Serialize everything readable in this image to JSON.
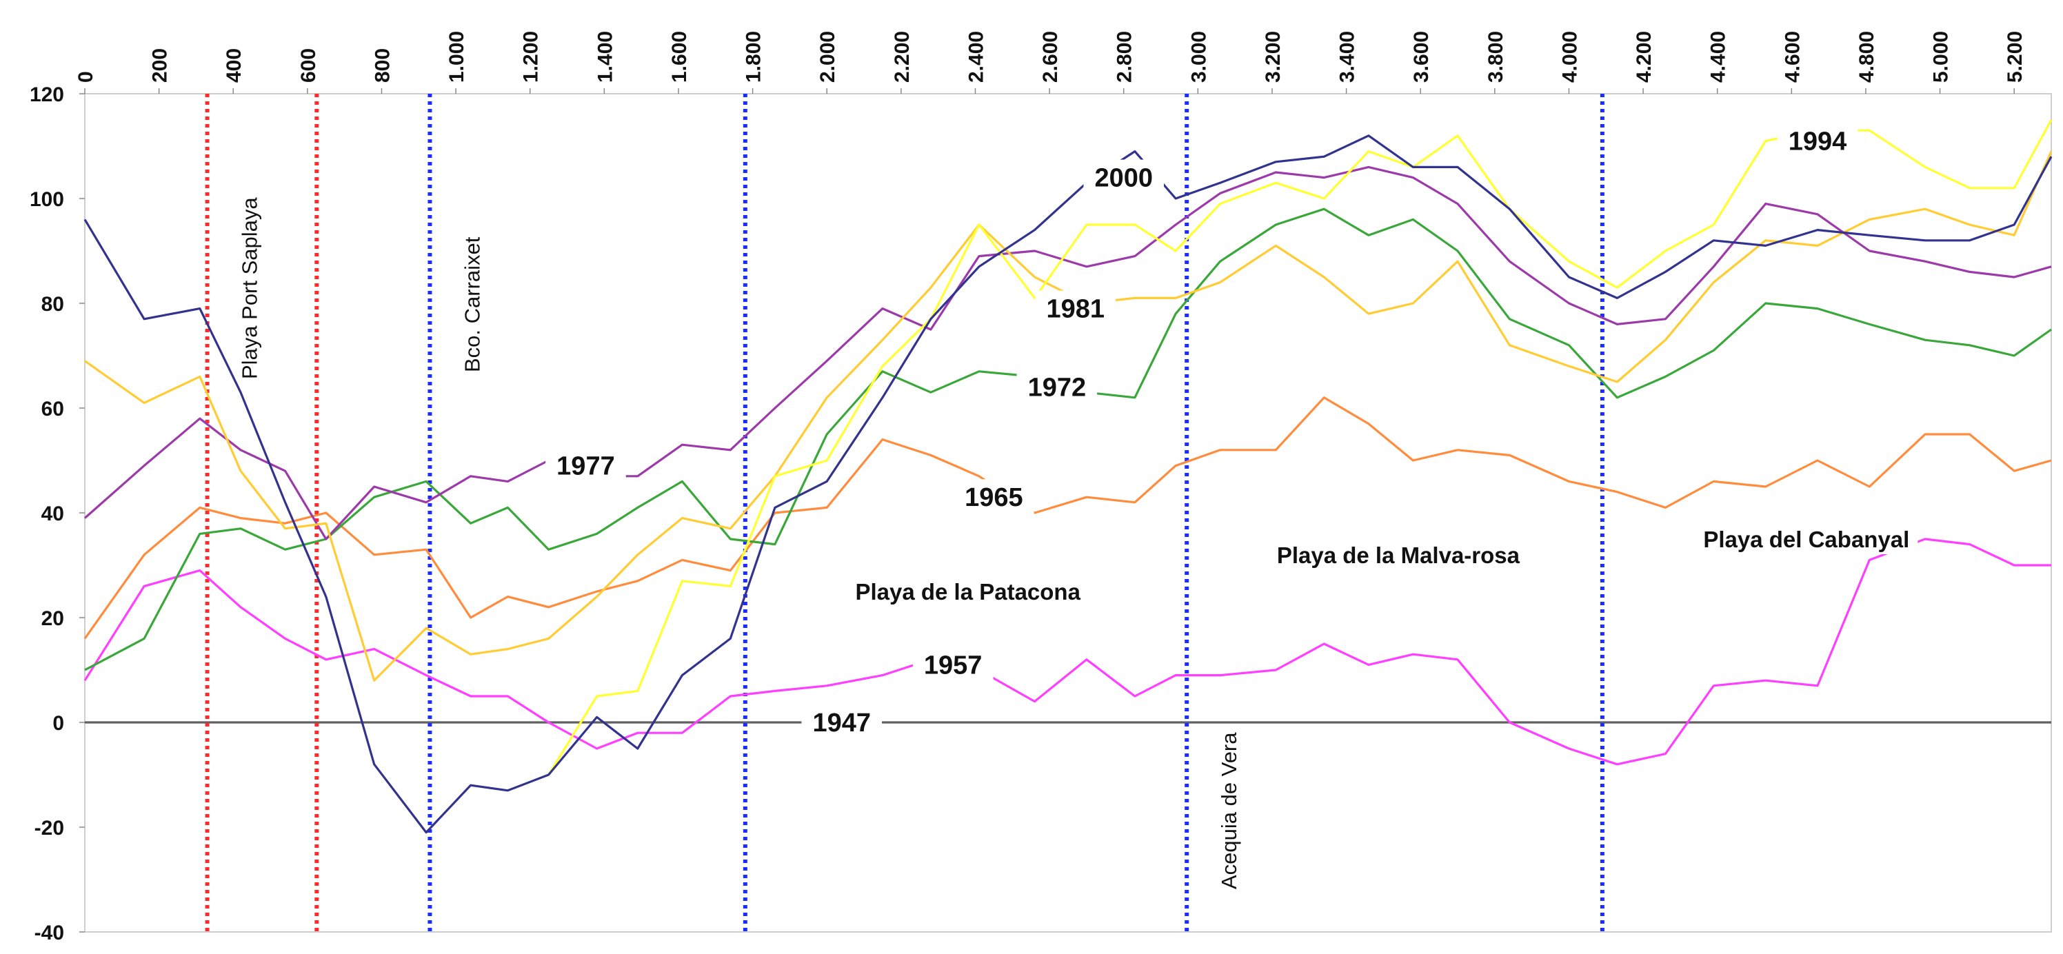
{
  "chart_data": {
    "type": "line",
    "xlabel": "",
    "ylabel": "",
    "xlim": [
      0,
      5300
    ],
    "ylim": [
      -40,
      120
    ],
    "x_ticks": [
      "0",
      "200",
      "400",
      "600",
      "800",
      "1.000",
      "1.200",
      "1.400",
      "1.600",
      "1.800",
      "2.000",
      "2.200",
      "2.400",
      "2.600",
      "2.800",
      "3.000",
      "3.200",
      "3.400",
      "3.600",
      "3.800",
      "4.000",
      "4.200",
      "4.400",
      "4.600",
      "4.800",
      "5.000",
      "5.200"
    ],
    "x_tick_values": [
      0,
      200,
      400,
      600,
      800,
      1000,
      1200,
      1400,
      1600,
      1800,
      2000,
      2200,
      2400,
      2600,
      2800,
      3000,
      3200,
      3400,
      3600,
      3800,
      4000,
      4200,
      4400,
      4600,
      4800,
      5000,
      5200
    ],
    "y_ticks": [
      "120",
      "100",
      "80",
      "60",
      "40",
      "20",
      "0",
      "-20",
      "-40"
    ],
    "y_tick_values": [
      120,
      100,
      80,
      60,
      40,
      20,
      0,
      -20,
      -40
    ],
    "series": [
      {
        "name": "1947",
        "color": "#606060",
        "x": [
          0,
          5300
        ],
        "y": [
          0,
          0
        ]
      },
      {
        "name": "1957",
        "color": "#ff3fff",
        "x": [
          0,
          160,
          310,
          420,
          540,
          650,
          780,
          920,
          1040,
          1140,
          1250,
          1380,
          1490,
          1610,
          1740,
          1860,
          2000,
          2150,
          2280,
          2410,
          2560,
          2700,
          2830,
          2940,
          3060,
          3210,
          3340,
          3460,
          3580,
          3700,
          3840,
          4000,
          4130,
          4260,
          4390,
          4530,
          4670,
          4810,
          4960,
          5080,
          5200,
          5300
        ],
        "y": [
          8,
          26,
          29,
          22,
          16,
          12,
          14,
          9,
          5,
          5,
          0,
          -5,
          -2,
          -2,
          5,
          6,
          7,
          9,
          12,
          10,
          4,
          12,
          5,
          9,
          9,
          10,
          15,
          11,
          13,
          12,
          0,
          -5,
          -8,
          -6,
          7,
          8,
          7,
          31,
          35,
          34,
          30,
          30
        ]
      },
      {
        "name": "1965",
        "color": "#ff8c3c",
        "x": [
          0,
          160,
          310,
          420,
          540,
          650,
          780,
          920,
          1040,
          1140,
          1250,
          1380,
          1490,
          1610,
          1740,
          1860,
          2000,
          2150,
          2280,
          2410,
          2560,
          2700,
          2830,
          2940,
          3060,
          3210,
          3340,
          3460,
          3580,
          3700,
          3840,
          4000,
          4130,
          4260,
          4390,
          4530,
          4670,
          4810,
          4960,
          5080,
          5200,
          5300
        ],
        "y": [
          16,
          32,
          41,
          39,
          38,
          40,
          32,
          33,
          20,
          24,
          22,
          25,
          27,
          31,
          29,
          40,
          41,
          54,
          51,
          47,
          40,
          43,
          42,
          49,
          52,
          52,
          62,
          57,
          50,
          52,
          51,
          46,
          44,
          41,
          46,
          45,
          50,
          45,
          55,
          55,
          48,
          50
        ]
      },
      {
        "name": "1972",
        "color": "#3aa73a",
        "x": [
          0,
          160,
          310,
          420,
          540,
          650,
          780,
          920,
          1040,
          1140,
          1250,
          1380,
          1490,
          1610,
          1740,
          1860,
          2000,
          2150,
          2280,
          2410,
          2560,
          2700,
          2830,
          2940,
          3060,
          3210,
          3340,
          3460,
          3580,
          3700,
          3840,
          4000,
          4130,
          4260,
          4390,
          4530,
          4670,
          4810,
          4960,
          5080,
          5200,
          5300
        ],
        "y": [
          10,
          16,
          36,
          37,
          33,
          35,
          43,
          46,
          38,
          41,
          33,
          36,
          41,
          46,
          35,
          34,
          55,
          67,
          63,
          67,
          66,
          63,
          62,
          78,
          88,
          95,
          98,
          93,
          96,
          90,
          77,
          72,
          62,
          66,
          71,
          80,
          79,
          76,
          73,
          72,
          70,
          75
        ]
      },
      {
        "name": "1977",
        "color": "#9b3aa8",
        "x": [
          0,
          160,
          310,
          420,
          540,
          650,
          780,
          920,
          1040,
          1140,
          1250,
          1380,
          1490,
          1610,
          1740,
          1860,
          2000,
          2150,
          2280,
          2410,
          2560,
          2700,
          2830,
          2940,
          3060,
          3210,
          3340,
          3460,
          3580,
          3700,
          3840,
          4000,
          4130,
          4260,
          4390,
          4530,
          4670,
          4810,
          4960,
          5080,
          5200,
          5300
        ],
        "y": [
          39,
          49,
          58,
          52,
          48,
          35,
          45,
          42,
          47,
          46,
          50,
          47,
          47,
          53,
          52,
          60,
          69,
          79,
          75,
          89,
          90,
          87,
          89,
          95,
          101,
          105,
          104,
          106,
          104,
          99,
          88,
          80,
          76,
          77,
          87,
          99,
          97,
          90,
          88,
          86,
          85,
          87
        ]
      },
      {
        "name": "1981",
        "color": "#ffcc33",
        "x": [
          0,
          160,
          310,
          420,
          540,
          650,
          780,
          920,
          1040,
          1140,
          1250,
          1380,
          1490,
          1610,
          1740,
          1860,
          2000,
          2150,
          2280,
          2410,
          2560,
          2700,
          2830,
          2940,
          3060,
          3210,
          3340,
          3460,
          3580,
          3700,
          3840,
          4000,
          4130,
          4260,
          4390,
          4530,
          4670,
          4810,
          4960,
          5080,
          5200,
          5300
        ],
        "y": [
          69,
          61,
          66,
          48,
          37,
          38,
          8,
          18,
          13,
          14,
          16,
          24,
          32,
          39,
          37,
          47,
          62,
          73,
          83,
          95,
          85,
          80,
          81,
          81,
          84,
          91,
          85,
          78,
          80,
          88,
          72,
          68,
          65,
          73,
          84,
          92,
          91,
          96,
          98,
          95,
          93,
          109
        ]
      },
      {
        "name": "1994",
        "color": "#ffff33",
        "x": [
          1250,
          1380,
          1490,
          1610,
          1740,
          1860,
          2000,
          2150,
          2280,
          2410,
          2560,
          2700,
          2830,
          2940,
          3060,
          3210,
          3340,
          3460,
          3580,
          3700,
          3840,
          4000,
          4130,
          4260,
          4390,
          4530,
          4670,
          4810,
          4960,
          5080,
          5200,
          5300
        ],
        "y": [
          -10,
          5,
          6,
          27,
          26,
          47,
          50,
          68,
          77,
          95,
          81,
          95,
          95,
          90,
          99,
          103,
          100,
          109,
          106,
          112,
          98,
          88,
          83,
          90,
          95,
          111,
          113,
          113,
          106,
          102,
          102,
          115
        ]
      },
      {
        "name": "2000",
        "color": "#32328f",
        "x": [
          0,
          160,
          310,
          420,
          540,
          650,
          780,
          920,
          1040,
          1140,
          1250,
          1380,
          1490,
          1610,
          1740,
          1860,
          2000,
          2150,
          2280,
          2410,
          2560,
          2700,
          2830,
          2940,
          3060,
          3210,
          3340,
          3460,
          3580,
          3700,
          3840,
          4000,
          4130,
          4260,
          4390,
          4530,
          4670,
          4810,
          4960,
          5080,
          5200,
          5300
        ],
        "y": [
          96,
          77,
          79,
          63,
          42,
          24,
          -8,
          -21,
          -12,
          -13,
          -10,
          1,
          -5,
          9,
          16,
          41,
          46,
          62,
          77,
          87,
          94,
          103,
          109,
          100,
          103,
          107,
          108,
          112,
          106,
          106,
          98,
          85,
          81,
          86,
          92,
          91,
          94,
          93,
          92,
          92,
          95,
          108
        ]
      }
    ],
    "series_labels": [
      {
        "text": "1947",
        "x": 2040,
        "y": 0
      },
      {
        "text": "1957",
        "x": 2340,
        "y": 11
      },
      {
        "text": "1965",
        "x": 2450,
        "y": 43
      },
      {
        "text": "1972",
        "x": 2620,
        "y": 64
      },
      {
        "text": "1977",
        "x": 1350,
        "y": 49
      },
      {
        "text": "1981",
        "x": 2670,
        "y": 79
      },
      {
        "text": "1994",
        "x": 4670,
        "y": 111
      },
      {
        "text": "2000",
        "x": 2800,
        "y": 104
      }
    ],
    "vertical_lines": [
      {
        "x": 330,
        "color": "#ff2a2a",
        "label": "Playa Port Saplaya"
      },
      {
        "x": 625,
        "color": "#ff2a2a",
        "label": ""
      },
      {
        "x": 930,
        "color": "#1a2cff",
        "label": "Bco. Carraixet"
      },
      {
        "x": 1780,
        "color": "#1a2cff",
        "label": ""
      },
      {
        "x": 2970,
        "color": "#1a2cff",
        "label": "Acequia de Vera"
      },
      {
        "x": 4090,
        "color": "#1a2cff",
        "label": ""
      }
    ],
    "zone_labels": [
      {
        "text": "Playa de la Patacona",
        "x": 2380,
        "y": 25
      },
      {
        "text": "Playa de la Malva-rosa",
        "x": 3540,
        "y": 32
      },
      {
        "text": "Playa del Cabanyal",
        "x": 4640,
        "y": 35
      }
    ],
    "grid": false,
    "legend": "none"
  }
}
